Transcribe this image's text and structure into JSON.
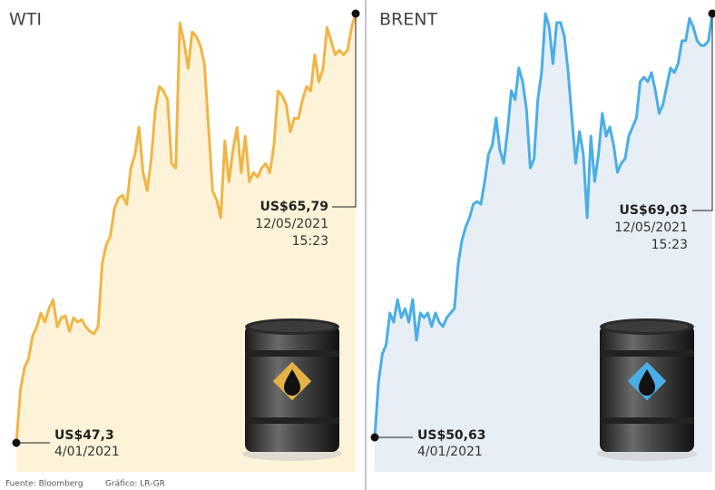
{
  "chart_data": [
    {
      "type": "line",
      "title": "WTI",
      "color": "#f0b545",
      "fill": "#fdf3d9",
      "values": [
        47.3,
        49.57,
        50.54,
        50.93,
        51.91,
        52.3,
        52.89,
        52.5,
        53.08,
        53.47,
        52.3,
        52.69,
        52.77,
        52.1,
        52.69,
        52.5,
        52.61,
        52.3,
        52.1,
        51.99,
        52.3,
        55.03,
        55.82,
        56.21,
        57.38,
        57.85,
        57.96,
        57.57,
        59.14,
        59.72,
        60.89,
        58.94,
        58.16,
        59.53,
        61.68,
        62.65,
        62.46,
        62.07,
        59.33,
        59.14,
        65.39,
        64.6,
        63.43,
        65.0,
        64.8,
        64.41,
        63.63,
        60.89,
        58.16,
        57.77,
        56.99,
        60.31,
        58.55,
        59.92,
        60.89,
        58.94,
        60.5,
        58.55,
        58.94,
        58.75,
        59.14,
        59.33,
        58.94,
        60.11,
        62.46,
        62.26,
        61.87,
        60.7,
        61.28,
        61.28,
        62.07,
        62.65,
        62.46,
        64.02,
        62.85,
        63.43,
        65.19,
        64.6,
        64.02,
        64.21,
        64.02,
        64.21,
        65.19,
        65.79
      ],
      "value_labels": [
        "US$47,3",
        null,
        null,
        null,
        null,
        null,
        null,
        null,
        null,
        null,
        null,
        null,
        null,
        null,
        null,
        null,
        null,
        null,
        null,
        null,
        null,
        null,
        null,
        null,
        null,
        null,
        null,
        null,
        null,
        null,
        null,
        null,
        null,
        null,
        null,
        null,
        null,
        null,
        null,
        null,
        null,
        null,
        null,
        null,
        null,
        null,
        null,
        null,
        null,
        null,
        null,
        null,
        null,
        null,
        null,
        null,
        null,
        null,
        null,
        null,
        null,
        null,
        null,
        null,
        null,
        null,
        null,
        null,
        null,
        null,
        null,
        null,
        null,
        null,
        null,
        null,
        null,
        null,
        null,
        null,
        null,
        null,
        null,
        "US$65,79"
      ],
      "categories": [
        "4/01/2021",
        null,
        null,
        null,
        null,
        null,
        null,
        null,
        null,
        null,
        null,
        null,
        null,
        null,
        null,
        null,
        null,
        null,
        null,
        null,
        null,
        null,
        null,
        null,
        null,
        null,
        null,
        null,
        null,
        null,
        null,
        null,
        null,
        null,
        null,
        null,
        null,
        null,
        null,
        null,
        null,
        null,
        null,
        null,
        null,
        null,
        null,
        null,
        null,
        null,
        null,
        null,
        null,
        null,
        null,
        null,
        null,
        null,
        null,
        null,
        null,
        null,
        null,
        null,
        null,
        null,
        null,
        null,
        null,
        null,
        null,
        null,
        null,
        null,
        null,
        null,
        null,
        null,
        null,
        null,
        null,
        null,
        null,
        "12/05/2021"
      ],
      "end_time": "15:23"
    },
    {
      "type": "line",
      "title": "BRENT",
      "color": "#4aaee6",
      "fill": "#e7eef5",
      "values": [
        50.63,
        53.07,
        54.25,
        54.65,
        56.03,
        55.63,
        56.62,
        55.83,
        56.22,
        55.63,
        56.62,
        54.85,
        56.03,
        55.83,
        56.03,
        55.44,
        56.03,
        55.63,
        55.44,
        55.83,
        56.03,
        56.22,
        58.19,
        59.18,
        59.77,
        60.17,
        60.76,
        60.87,
        60.76,
        61.74,
        62.92,
        63.32,
        64.5,
        63.12,
        62.53,
        63.91,
        65.68,
        65.29,
        66.67,
        66.08,
        64.89,
        62.33,
        62.73,
        65.29,
        66.47,
        69.03,
        68.44,
        66.86,
        68.64,
        68.64,
        68.05,
        66.47,
        64.5,
        62.53,
        63.91,
        62.92,
        60.17,
        63.71,
        61.74,
        62.92,
        64.7,
        63.71,
        64.11,
        63.32,
        62.14,
        62.53,
        62.73,
        63.71,
        64.11,
        64.5,
        66.08,
        66.27,
        66.08,
        66.47,
        65.68,
        64.7,
        65.09,
        65.88,
        66.67,
        66.47,
        66.86,
        67.85,
        67.85,
        68.83,
        68.44,
        67.85,
        67.65,
        67.65,
        67.85,
        69.03
      ],
      "value_labels": [
        "US$50,63",
        null,
        null,
        null,
        null,
        null,
        null,
        null,
        null,
        null,
        null,
        null,
        null,
        null,
        null,
        null,
        null,
        null,
        null,
        null,
        null,
        null,
        null,
        null,
        null,
        null,
        null,
        null,
        null,
        null,
        null,
        null,
        null,
        null,
        null,
        null,
        null,
        null,
        null,
        null,
        null,
        null,
        null,
        null,
        null,
        null,
        null,
        null,
        null,
        null,
        null,
        null,
        null,
        null,
        null,
        null,
        null,
        null,
        null,
        null,
        null,
        null,
        null,
        null,
        null,
        null,
        null,
        null,
        null,
        null,
        null,
        null,
        null,
        null,
        null,
        null,
        null,
        null,
        null,
        null,
        null,
        null,
        null,
        null,
        null,
        null,
        null,
        null,
        null,
        "US$69,03"
      ],
      "categories": [
        "4/01/2021",
        null,
        null,
        null,
        null,
        null,
        null,
        null,
        null,
        null,
        null,
        null,
        null,
        null,
        null,
        null,
        null,
        null,
        null,
        null,
        null,
        null,
        null,
        null,
        null,
        null,
        null,
        null,
        null,
        null,
        null,
        null,
        null,
        null,
        null,
        null,
        null,
        null,
        null,
        null,
        null,
        null,
        null,
        null,
        null,
        null,
        null,
        null,
        null,
        null,
        null,
        null,
        null,
        null,
        null,
        null,
        null,
        null,
        null,
        null,
        null,
        null,
        null,
        null,
        null,
        null,
        null,
        null,
        null,
        null,
        null,
        null,
        null,
        null,
        null,
        null,
        null,
        null,
        null,
        null,
        null,
        null,
        null,
        null,
        null,
        null,
        null,
        null,
        null,
        "12/05/2021"
      ],
      "end_time": "15:23"
    }
  ],
  "source": "Fuente: Bloomberg",
  "credit": "Gráfico: LR-GR"
}
